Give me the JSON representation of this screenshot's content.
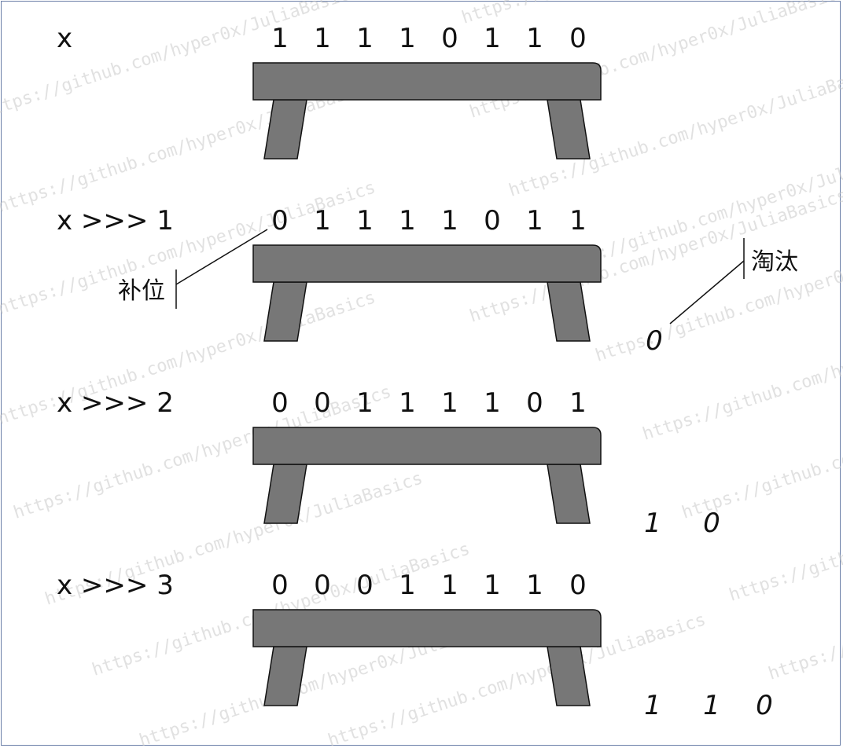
{
  "rows": [
    {
      "label": "x",
      "bits": [
        "1",
        "1",
        "1",
        "1",
        "0",
        "1",
        "1",
        "0"
      ],
      "discarded": []
    },
    {
      "label": "x >>> 1",
      "bits": [
        "0",
        "1",
        "1",
        "1",
        "1",
        "0",
        "1",
        "1"
      ],
      "discarded": [
        "0"
      ]
    },
    {
      "label": "x >>> 2",
      "bits": [
        "0",
        "0",
        "1",
        "1",
        "1",
        "1",
        "0",
        "1"
      ],
      "discarded": [
        "1",
        "0"
      ]
    },
    {
      "label": "x >>> 3",
      "bits": [
        "0",
        "0",
        "0",
        "1",
        "1",
        "1",
        "1",
        "0"
      ],
      "discarded": [
        "1",
        "1",
        "0"
      ]
    }
  ],
  "annotations": {
    "fill": "补位",
    "discard": "淘汰"
  },
  "watermark": "https://github.com/hyper0x/JuliaBasics",
  "colors": {
    "bench": "#777777",
    "stroke": "#111111",
    "frame": "#6b7fa8"
  }
}
